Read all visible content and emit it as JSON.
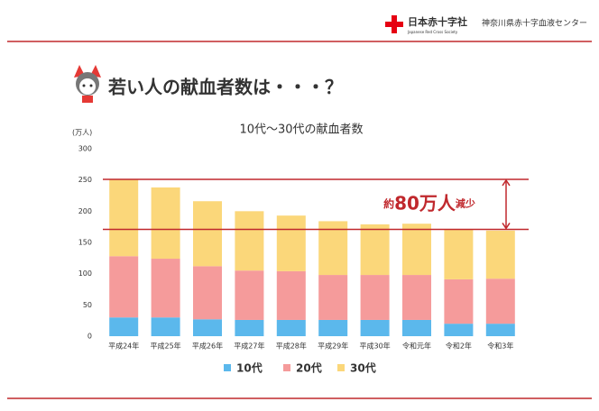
{
  "header": {
    "org": "日本赤十字社",
    "org_en": "Japanese Red Cross Society",
    "center": "神奈川県赤十字血液センター"
  },
  "slide_title": "若い人の献血者数は・・・？",
  "chart_data": {
    "type": "stacked_bar",
    "title": "10代～30代の献血者数",
    "y_unit": "(万人)",
    "categories": [
      "平成24年",
      "平成25年",
      "平成26年",
      "平成27年",
      "平成28年",
      "平成29年",
      "平成30年",
      "令和元年",
      "令和2年",
      "令和3年"
    ],
    "series": [
      {
        "name": "10代",
        "color": "#5bb8ec",
        "values": [
          30,
          30,
          27,
          26,
          26,
          26,
          26,
          26,
          20,
          20
        ]
      },
      {
        "name": "20代",
        "color": "#f59b9b",
        "values": [
          98,
          94,
          85,
          79,
          78,
          72,
          72,
          72,
          71,
          72
        ]
      },
      {
        "name": "30代",
        "color": "#fbd77a",
        "values": [
          123,
          114,
          104,
          95,
          89,
          86,
          81,
          82,
          80,
          77
        ]
      }
    ],
    "ylim": [
      0,
      300
    ],
    "yticks": [
      0,
      50,
      100,
      150,
      200,
      250,
      300
    ],
    "grid": false,
    "reference_lines": [
      251,
      171
    ],
    "reference_color": "#c0282d",
    "annotation": {
      "prefix": "約",
      "main": "80万人",
      "suffix": "減少"
    }
  }
}
